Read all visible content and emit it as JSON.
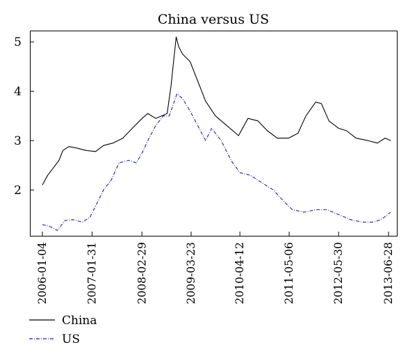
{
  "chart_data": {
    "type": "line",
    "title": "China versus US",
    "xlabel": "",
    "ylabel": "",
    "x_tick_labels": [
      "2006-01-04",
      "2007-01-31",
      "2008-02-29",
      "2009-03-23",
      "2010-04-12",
      "2011-05-06",
      "2012-05-30",
      "2013-06-28"
    ],
    "y_ticks": [
      2,
      3,
      4,
      5
    ],
    "ylim": [
      1.1,
      5.2
    ],
    "xlim": [
      "2006-01-04",
      "2013-07-20"
    ],
    "grid": false,
    "legend_position": "bottom-left",
    "series": [
      {
        "name": "China",
        "color": "#000000",
        "style": "solid",
        "points": [
          [
            "2006-01-04",
            2.1
          ],
          [
            "2006-02-15",
            2.3
          ],
          [
            "2006-04-01",
            2.45
          ],
          [
            "2006-05-15",
            2.6
          ],
          [
            "2006-06-15",
            2.8
          ],
          [
            "2006-08-01",
            2.88
          ],
          [
            "2006-10-01",
            2.85
          ],
          [
            "2006-12-15",
            2.8
          ],
          [
            "2007-03-01",
            2.78
          ],
          [
            "2007-05-01",
            2.9
          ],
          [
            "2007-07-15",
            2.95
          ],
          [
            "2007-10-01",
            3.05
          ],
          [
            "2007-12-15",
            3.25
          ],
          [
            "2008-03-01",
            3.45
          ],
          [
            "2008-04-15",
            3.55
          ],
          [
            "2008-06-15",
            3.45
          ],
          [
            "2008-08-01",
            3.5
          ],
          [
            "2008-09-15",
            3.55
          ],
          [
            "2008-10-15",
            4.1
          ],
          [
            "2008-11-25",
            5.1
          ],
          [
            "2008-12-15",
            4.9
          ],
          [
            "2009-01-15",
            4.75
          ],
          [
            "2009-03-15",
            4.6
          ],
          [
            "2009-05-15",
            4.2
          ],
          [
            "2009-07-15",
            3.8
          ],
          [
            "2009-10-01",
            3.5
          ],
          [
            "2010-01-01",
            3.3
          ],
          [
            "2010-04-01",
            3.1
          ],
          [
            "2010-06-15",
            3.45
          ],
          [
            "2010-09-01",
            3.4
          ],
          [
            "2010-11-15",
            3.2
          ],
          [
            "2011-02-01",
            3.05
          ],
          [
            "2011-05-01",
            3.05
          ],
          [
            "2011-07-15",
            3.15
          ],
          [
            "2011-09-15",
            3.5
          ],
          [
            "2011-12-01",
            3.78
          ],
          [
            "2012-01-15",
            3.75
          ],
          [
            "2012-03-15",
            3.4
          ],
          [
            "2012-05-30",
            3.25
          ],
          [
            "2012-08-01",
            3.2
          ],
          [
            "2012-10-15",
            3.05
          ],
          [
            "2013-01-15",
            3.0
          ],
          [
            "2013-04-01",
            2.95
          ],
          [
            "2013-06-01",
            3.05
          ],
          [
            "2013-07-15",
            3.0
          ]
        ]
      },
      {
        "name": "US",
        "color": "#1f1fa8",
        "style": "dashdot",
        "points": [
          [
            "2006-01-04",
            1.3
          ],
          [
            "2006-03-15",
            1.25
          ],
          [
            "2006-05-01",
            1.18
          ],
          [
            "2006-07-01",
            1.38
          ],
          [
            "2006-09-01",
            1.4
          ],
          [
            "2006-11-15",
            1.35
          ],
          [
            "2007-01-15",
            1.45
          ],
          [
            "2007-03-15",
            1.75
          ],
          [
            "2007-05-01",
            2.0
          ],
          [
            "2007-07-01",
            2.2
          ],
          [
            "2007-09-01",
            2.55
          ],
          [
            "2007-11-15",
            2.6
          ],
          [
            "2008-01-15",
            2.55
          ],
          [
            "2008-03-01",
            2.75
          ],
          [
            "2008-04-15",
            3.0
          ],
          [
            "2008-06-15",
            3.3
          ],
          [
            "2008-08-15",
            3.5
          ],
          [
            "2008-10-01",
            3.5
          ],
          [
            "2008-12-01",
            3.95
          ],
          [
            "2009-01-15",
            3.85
          ],
          [
            "2009-03-15",
            3.6
          ],
          [
            "2009-05-15",
            3.3
          ],
          [
            "2009-07-15",
            3.0
          ],
          [
            "2009-09-01",
            3.25
          ],
          [
            "2009-11-15",
            3.0
          ],
          [
            "2010-02-01",
            2.6
          ],
          [
            "2010-04-12",
            2.35
          ],
          [
            "2010-07-01",
            2.3
          ],
          [
            "2010-10-01",
            2.15
          ],
          [
            "2011-01-01",
            2.0
          ],
          [
            "2011-04-01",
            1.75
          ],
          [
            "2011-06-01",
            1.6
          ],
          [
            "2011-09-01",
            1.55
          ],
          [
            "2011-12-01",
            1.6
          ],
          [
            "2012-03-01",
            1.6
          ],
          [
            "2012-06-01",
            1.5
          ],
          [
            "2012-09-01",
            1.4
          ],
          [
            "2012-12-01",
            1.35
          ],
          [
            "2013-03-01",
            1.35
          ],
          [
            "2013-05-01",
            1.4
          ],
          [
            "2013-07-15",
            1.55
          ]
        ]
      }
    ]
  }
}
